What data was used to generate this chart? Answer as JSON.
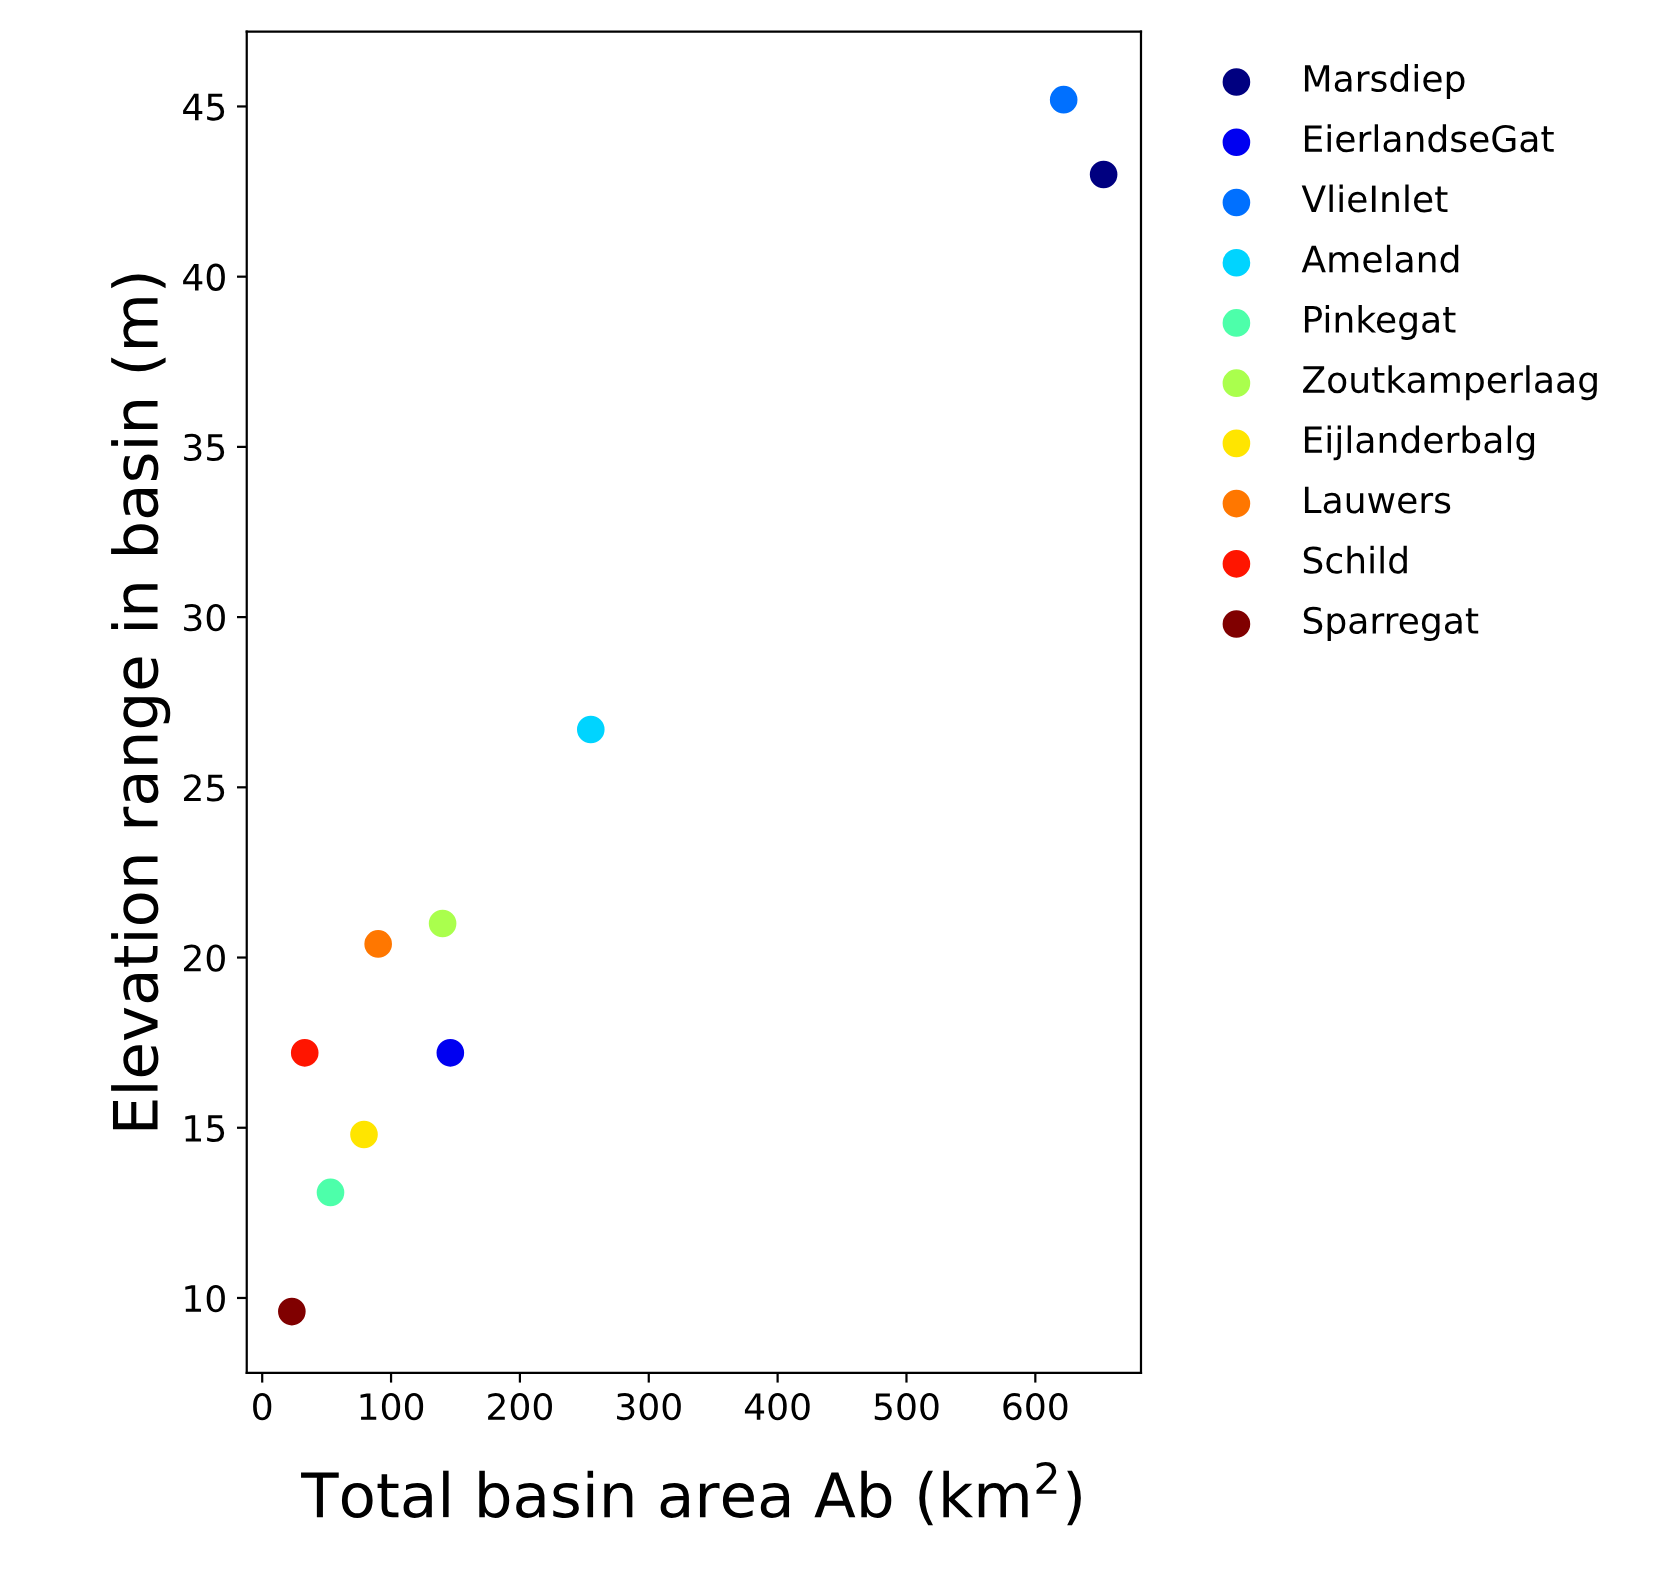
{
  "chart_data": {
    "type": "scatter",
    "xlabel": "Total basin area Ab (km$^{2}$)",
    "ylabel": "Elevation range in basin (m)",
    "xlim": [
      -12,
      682
    ],
    "ylim": [
      7.8,
      47.2
    ],
    "xticks": [
      0,
      100,
      200,
      300,
      400,
      500,
      600
    ],
    "yticks": [
      10,
      15,
      20,
      25,
      30,
      35,
      40,
      45
    ],
    "grid": false,
    "legend": "right",
    "marker": "circle",
    "series": [
      {
        "name": "Marsdiep",
        "color": "#000080",
        "x": [
          653
        ],
        "values": [
          43.0
        ]
      },
      {
        "name": "EierlandseGat",
        "color": "#0000f1",
        "x": [
          146
        ],
        "values": [
          17.2
        ]
      },
      {
        "name": "VlieInlet",
        "color": "#0070ff",
        "x": [
          622
        ],
        "values": [
          45.2
        ]
      },
      {
        "name": "Ameland",
        "color": "#00d4ff",
        "x": [
          255
        ],
        "values": [
          26.7
        ]
      },
      {
        "name": "Pinkegat",
        "color": "#4dffaa",
        "x": [
          53
        ],
        "values": [
          13.1
        ]
      },
      {
        "name": "Zoutkamperlaag",
        "color": "#aaff4d",
        "x": [
          140
        ],
        "values": [
          21.0
        ]
      },
      {
        "name": "Eijlanderbalg",
        "color": "#ffe500",
        "x": [
          79
        ],
        "values": [
          14.8
        ]
      },
      {
        "name": "Lauwers",
        "color": "#ff7700",
        "x": [
          90
        ],
        "values": [
          20.4
        ]
      },
      {
        "name": "Schild",
        "color": "#ff1500",
        "x": [
          33
        ],
        "values": [
          17.2
        ]
      },
      {
        "name": "Sparregat",
        "color": "#800000",
        "x": [
          23
        ],
        "values": [
          9.6
        ]
      }
    ]
  }
}
